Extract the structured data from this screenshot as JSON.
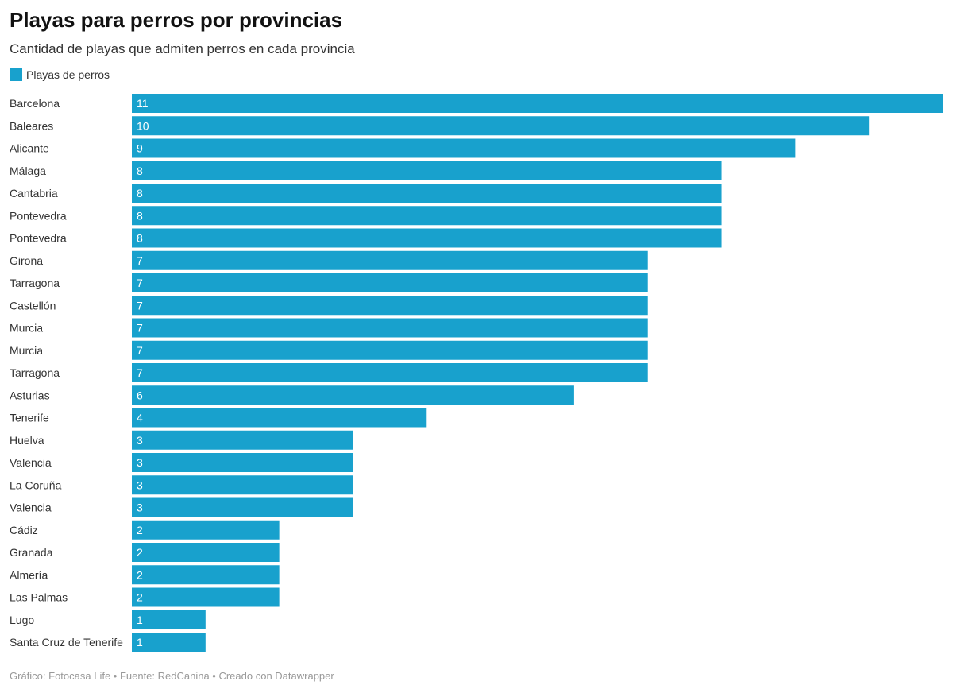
{
  "title": "Playas para perros por provincias",
  "subtitle": "Cantidad de playas que admiten perros en cada provincia",
  "footer": "Gráfico: Fotocasa Life • Fuente: RedCanina • Creado con Datawrapper",
  "chart_data": {
    "type": "bar",
    "orientation": "horizontal",
    "legend": {
      "position": "top-left",
      "entries": [
        "Playas de perros"
      ]
    },
    "color": "#18a1cd",
    "xlim": [
      0,
      11
    ],
    "grid": false,
    "categories": [
      "Barcelona",
      "Baleares",
      "Alicante",
      "Málaga",
      "Cantabria",
      "Pontevedra",
      "Pontevedra",
      "Girona",
      "Tarragona",
      "Castellón",
      "Murcia",
      "Murcia",
      "Tarragona",
      "Asturias",
      "Tenerife",
      "Huelva",
      "Valencia",
      "La Coruña",
      "Valencia",
      "Cádiz",
      "Granada",
      "Almería",
      "Las Palmas",
      "Lugo",
      "Santa Cruz de Tenerife"
    ],
    "series": [
      {
        "name": "Playas de perros",
        "values": [
          11,
          10,
          9,
          8,
          8,
          8,
          8,
          7,
          7,
          7,
          7,
          7,
          7,
          6,
          4,
          3,
          3,
          3,
          3,
          2,
          2,
          2,
          2,
          1,
          1
        ]
      }
    ]
  }
}
